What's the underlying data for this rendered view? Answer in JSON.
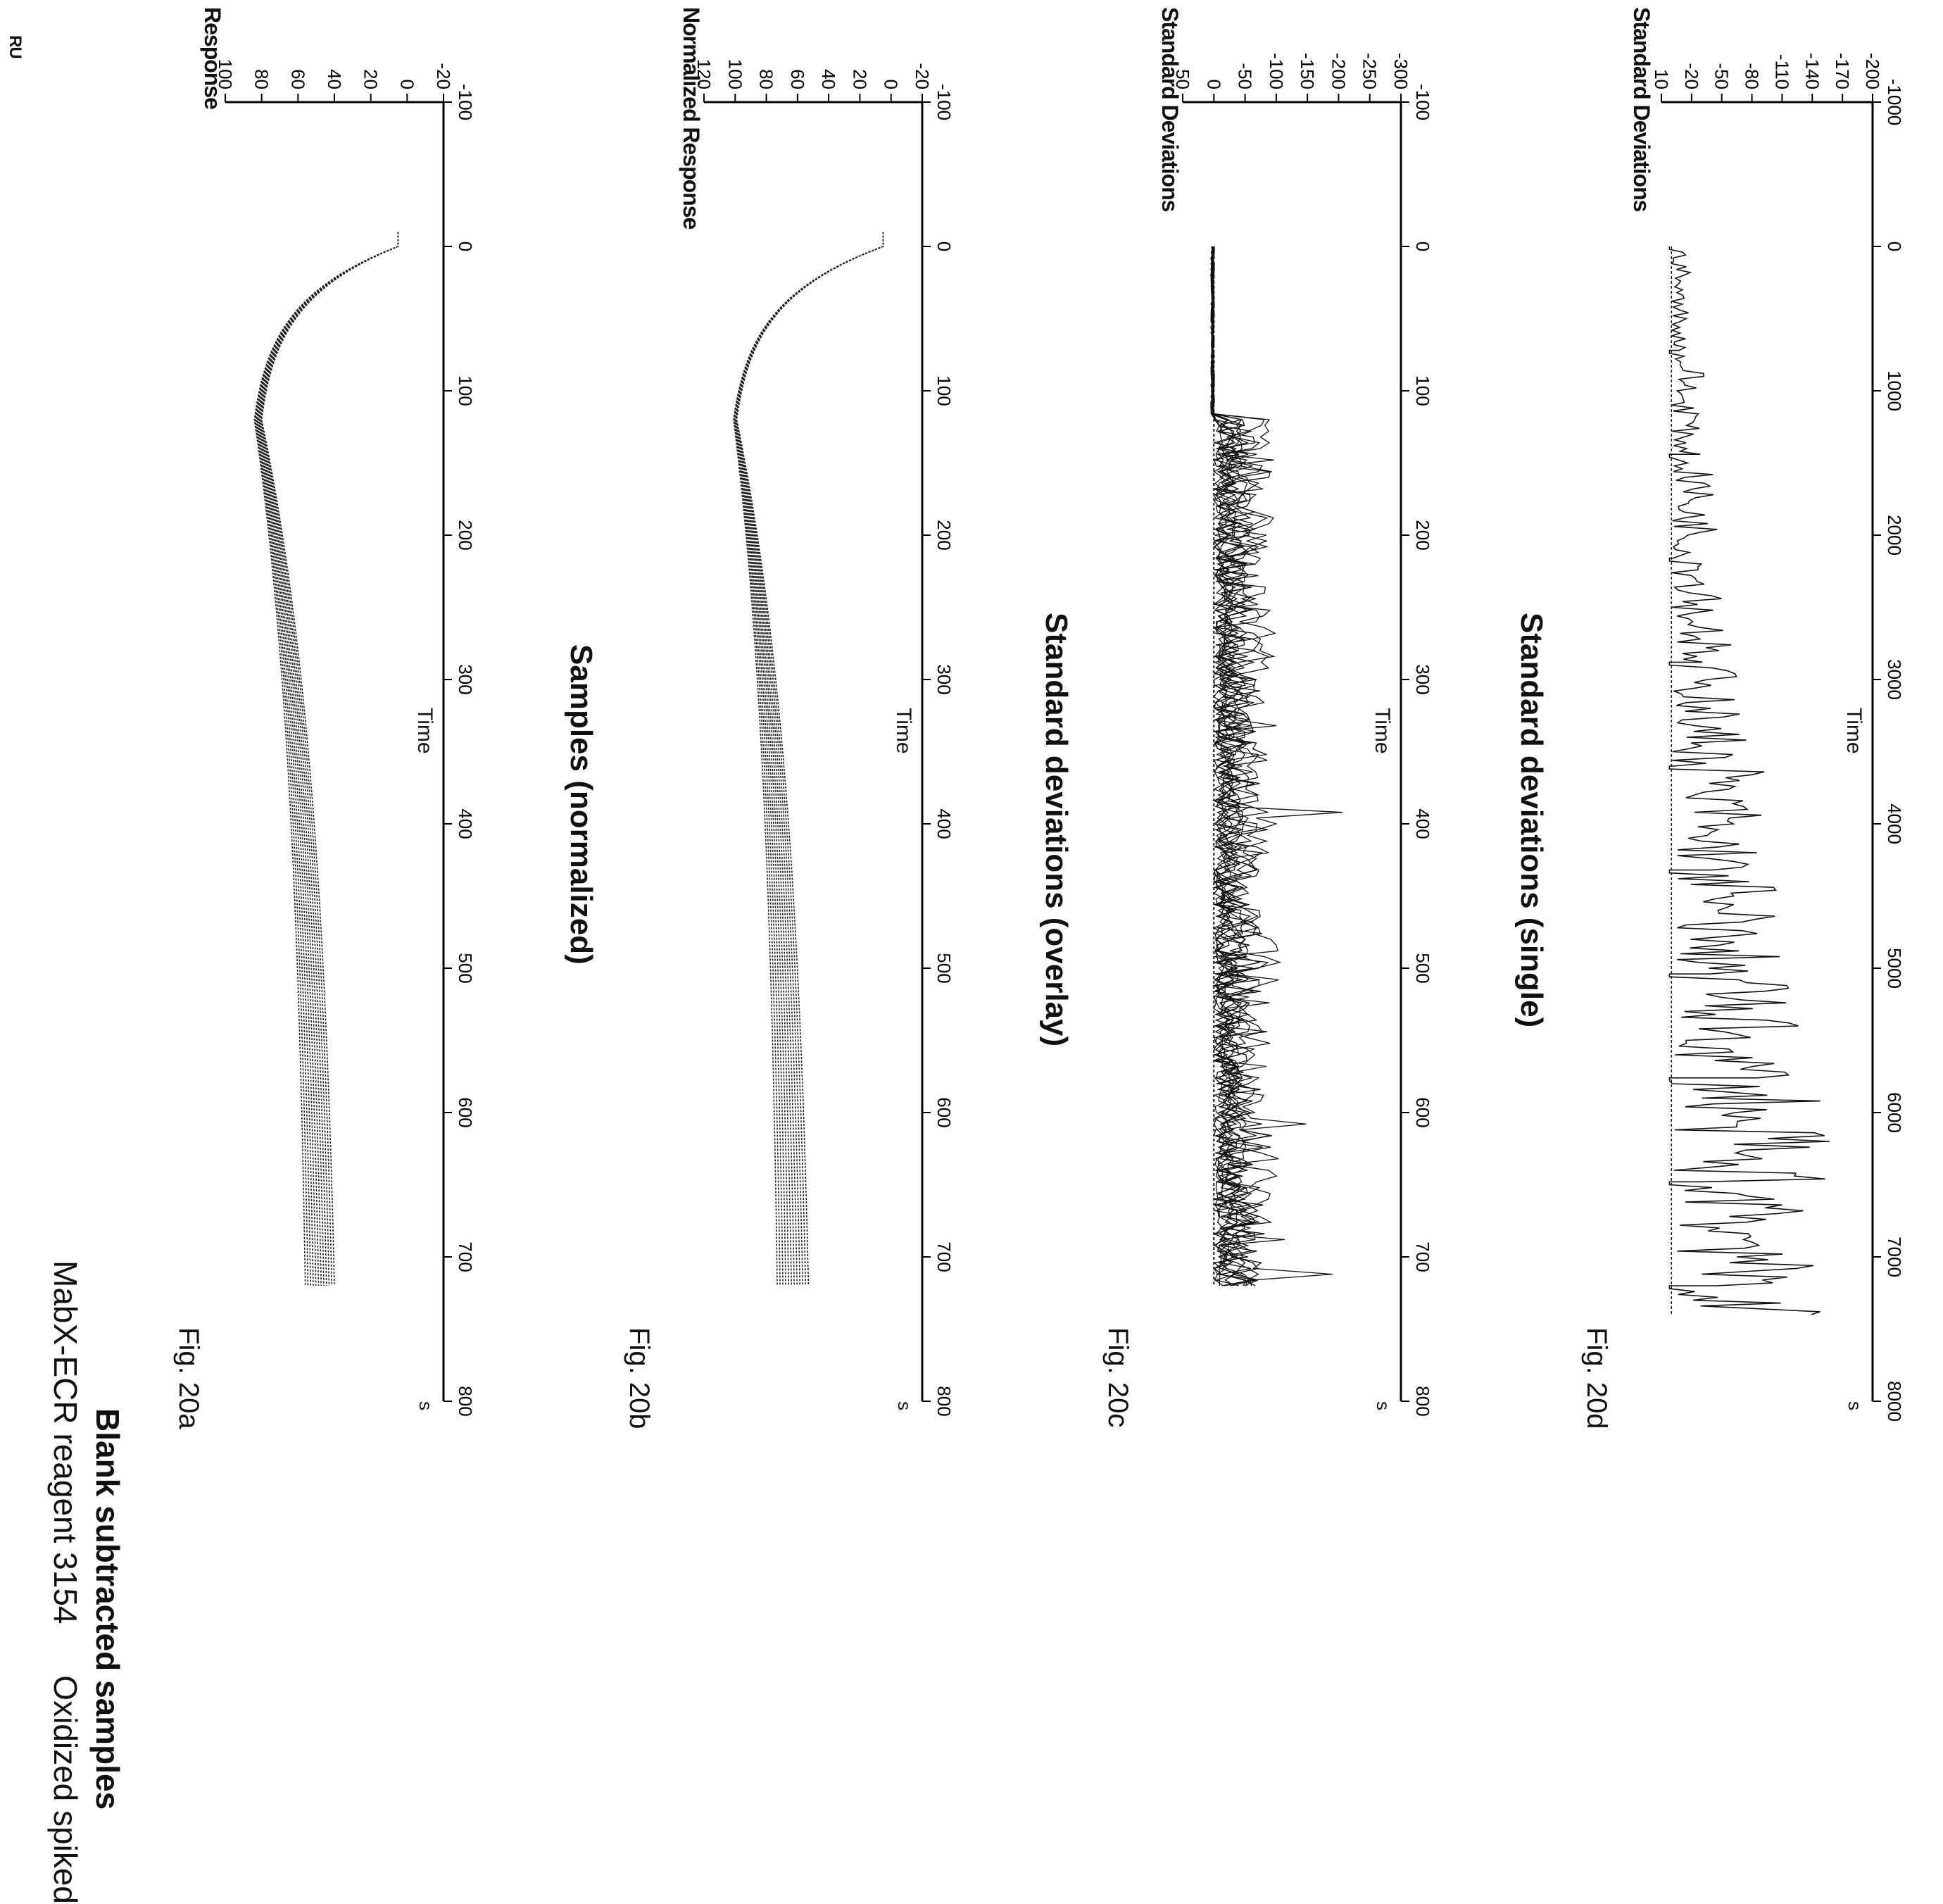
{
  "header": {
    "title_line1": "MabX-ECR reagent 3154",
    "title_line1b": "Oxidized spiked",
    "title_line2": "Blank subtracted samples"
  },
  "chart_data": [
    {
      "id": "fig20a",
      "type": "line",
      "figure_label": "Fig. 20a",
      "title": "",
      "ylabel": "Response",
      "yunit": "RU",
      "xlabel": "Time",
      "xunit": "s",
      "xlim": [
        -100,
        800
      ],
      "ylim": [
        -20,
        100
      ],
      "xticks": [
        -100,
        0,
        100,
        200,
        300,
        400,
        500,
        600,
        700,
        800
      ],
      "yticks": [
        -20,
        0,
        20,
        40,
        60,
        80,
        100
      ],
      "series_count": 12,
      "series_envelope": {
        "baseline_x": [
          -10,
          0
        ],
        "baseline_y": [
          5,
          5
        ],
        "association_end_x": 120,
        "association_end_y": [
          80,
          84
        ],
        "dissociation_end_x": 720,
        "dissociation_end_y": [
          40,
          56
        ]
      }
    },
    {
      "id": "fig20b",
      "type": "line",
      "figure_label": "Fig. 20b",
      "title": "Samples (normalized)",
      "ylabel": "Normalized Response",
      "xlabel": "Time",
      "xunit": "s",
      "xlim": [
        -100,
        800
      ],
      "ylim": [
        -20,
        120
      ],
      "xticks": [
        -100,
        0,
        100,
        200,
        300,
        400,
        500,
        600,
        700,
        800
      ],
      "yticks": [
        -20,
        0,
        20,
        40,
        60,
        80,
        100,
        120
      ],
      "series_count": 12,
      "series_envelope": {
        "baseline_x": [
          -10,
          0
        ],
        "baseline_y": [
          5,
          5
        ],
        "association_end_x": 120,
        "association_end_y": [
          99,
          101
        ],
        "dissociation_end_x": 720,
        "dissociation_end_y": [
          53,
          73
        ]
      }
    },
    {
      "id": "fig20c",
      "type": "line",
      "figure_label": "Fig. 20c",
      "title": "Standard deviations (overlay)",
      "ylabel": "Standard Deviations",
      "xlabel": "Time",
      "xunit": "s",
      "xlim": [
        -100,
        800
      ],
      "ylim": [
        -300,
        50
      ],
      "xticks": [
        -100,
        0,
        100,
        200,
        300,
        400,
        500,
        600,
        700,
        800
      ],
      "yticks": [
        -300,
        -250,
        -200,
        -150,
        -100,
        -50,
        0,
        50
      ],
      "series_count": 12,
      "trace_x_range": [
        0,
        720
      ],
      "min_approx": -215
    },
    {
      "id": "fig20d",
      "type": "line",
      "figure_label": "Fig. 20d",
      "title": "Standard deviations (single)",
      "ylabel": "Standard Deviations",
      "xlabel": "Time",
      "xunit": "s",
      "xlim": [
        -1000,
        8000
      ],
      "ylim": [
        -200,
        10
      ],
      "xticks": [
        -1000,
        0,
        1000,
        2000,
        3000,
        4000,
        5000,
        6000,
        7000,
        8000
      ],
      "yticks": [
        -200,
        -170,
        -140,
        -110,
        -80,
        -50,
        -20,
        10
      ],
      "segments": [
        {
          "x_range": [
            0,
            720
          ],
          "min": -20
        },
        {
          "x_range": [
            720,
            1440
          ],
          "min": -35
        },
        {
          "x_range": [
            1440,
            2160
          ],
          "min": -50
        },
        {
          "x_range": [
            2160,
            2880
          ],
          "min": -70
        },
        {
          "x_range": [
            2880,
            3600
          ],
          "min": -85
        },
        {
          "x_range": [
            3600,
            4320
          ],
          "min": -100
        },
        {
          "x_range": [
            4320,
            5040
          ],
          "min": -120
        },
        {
          "x_range": [
            5040,
            5760
          ],
          "min": -140
        },
        {
          "x_range": [
            5760,
            6480
          ],
          "min": -165
        },
        {
          "x_range": [
            6480,
            7200
          ],
          "min": -195
        },
        {
          "x_range": [
            7200,
            7400
          ],
          "min": -180
        }
      ]
    }
  ]
}
